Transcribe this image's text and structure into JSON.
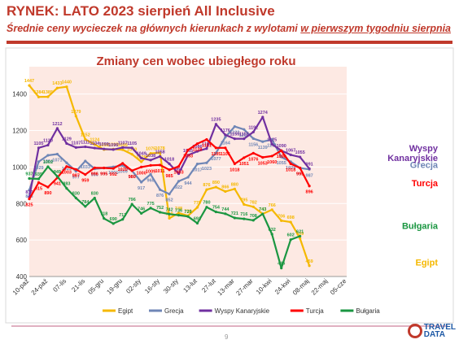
{
  "header": {
    "title": "RYNEK: LATO 2023 sierpień All Inclusive",
    "subtitle_prefix": "Średnie ceny wycieczek na głównych kierunkach z wylotami ",
    "subtitle_underlined": "w pierwszym tygodniu sierpnia"
  },
  "footer": {
    "page": "9",
    "logo_text_1": "TRAVEL",
    "logo_text_2": "DATA"
  },
  "colors": {
    "title": "#c0392b",
    "plot_bg": "#fde9e3",
    "frame": "#d9d9d9"
  },
  "chart_data": {
    "type": "line",
    "title": "Zmiany cen wobec ubiegłego roku",
    "ylim": [
      400,
      1550
    ],
    "yticks": [
      400,
      600,
      800,
      1000,
      1200,
      1400
    ],
    "grid": true,
    "legend_position": "bottom",
    "categories": [
      "10-paź",
      "17-paź",
      "24-paź",
      "31-paź",
      "07-lis",
      "14-lis",
      "21-lis",
      "28-lis",
      "05-gru",
      "12-gru",
      "19-gru",
      "26-gru",
      "02-sty",
      "09-sty",
      "16-sty",
      "23-sty",
      "30-sty",
      "06-lut",
      "13-lut",
      "20-lut",
      "27-lut",
      "06-mar",
      "13-mar",
      "20-mar",
      "27-mar",
      "03-kwi",
      "10-kwi",
      "17-kwi",
      "24-kwi",
      "01-maj",
      "08-maj",
      "15-maj",
      "22-maj",
      "29-maj",
      "05-cze"
    ],
    "xtick_labels": [
      "10-paź",
      "24-paź",
      "07-lis",
      "21-lis",
      "05-gru",
      "19-gru",
      "02-sty",
      "16-sty",
      "30-sty",
      "13-lut",
      "27-lut",
      "13-mar",
      "27-mar",
      "10-kwi",
      "24-kwi",
      "08-maj",
      "22-maj",
      "05-cze"
    ],
    "series": [
      {
        "name": "Egipt",
        "color": "#f5b800",
        "values": [
          1447,
          1384,
          1385,
          1433,
          1440,
          1279,
          1152,
          1124,
          1096,
          1098,
          1095,
          1070,
          1029,
          1075,
          1078,
          719,
          748,
          733,
          779,
          876,
          890,
          866,
          880,
          795,
          782,
          743,
          766,
          706,
          698,
          609,
          459,
          null,
          null,
          null,
          null
        ],
        "labels": [
          "1447",
          "1384",
          "1385",
          "1433",
          "1440",
          "1279",
          "1152",
          "1124",
          "1096",
          "1098",
          "1095",
          "1070",
          "1029",
          "1075",
          "1078",
          "719",
          "748",
          "733",
          "779",
          "876",
          "890",
          "866",
          "880",
          "795",
          "782",
          "743",
          "766",
          "706",
          "698",
          "609",
          "459",
          "",
          "",
          "",
          ""
        ]
      },
      {
        "name": "Grecja",
        "color": "#6f86b6",
        "values": [
          873,
          1029,
          1064,
          1071,
          1023,
          977,
          1033,
          990,
          995,
          1001,
          1009,
          980,
          917,
          960,
          876,
          852,
          922,
          944,
          1017,
          1023,
          1077,
          1164,
          1222,
          1206,
          1156,
          1139,
          1151,
          1055,
          1029,
          995,
          987,
          null,
          null,
          null,
          null
        ],
        "labels": [
          "873",
          "1029",
          "1064",
          "1071",
          "1023",
          "977",
          "1033",
          "990",
          "995",
          "1001",
          "1009",
          "980",
          "917",
          "960",
          "876",
          "852",
          "922",
          "944",
          "1017",
          "1023",
          "1077",
          "1164",
          "1222",
          "1206",
          "1156",
          "1139",
          "1151",
          "1055",
          "1029",
          "995",
          "987",
          "",
          "",
          "",
          ""
        ]
      },
      {
        "name": "Wyspy Kanaryjskie",
        "color": "#7030a0",
        "values": [
          836,
          1105,
          1120,
          1212,
          1129,
          1107,
          1111,
          1104,
          1099,
          1096,
          1107,
          1105,
          1049,
          1038,
          1058,
          1018,
          964,
          1065,
          1086,
          1101,
          1235,
          1176,
          1155,
          1155,
          1192,
          1274,
          1125,
          1090,
          1067,
          1055,
          991,
          null,
          null,
          null,
          null
        ],
        "labels": [
          "836",
          "1105",
          "1120",
          "1212",
          "1129",
          "1107",
          "1111",
          "1104",
          "1099",
          "1096",
          "1107",
          "1105",
          "1049",
          "1038",
          "1058",
          "1018",
          "964",
          "1065",
          "1086",
          "1101",
          "1235",
          "1176",
          "1155",
          "1155",
          "1192",
          "1274",
          "1125",
          "1090",
          "1067",
          "1055",
          "991",
          "",
          "",
          "",
          ""
        ]
      },
      {
        "name": "Turcja",
        "color": "#ff0000",
        "values": [
          825,
          915,
          890,
          941,
          1003,
          987,
          959,
          996,
          995,
          992,
          1020,
          980,
          1000,
          1009,
          1011,
          985,
          1003,
          1093,
          1128,
          1151,
          1105,
          1105,
          1018,
          1051,
          1076,
          1053,
          1060,
          1090,
          1018,
          995,
          896,
          null,
          null,
          null,
          null
        ],
        "labels": [
          "825",
          "915",
          "890",
          "941",
          "1003",
          "987",
          "959",
          "996",
          "995",
          "992",
          "1020",
          "980",
          "1000",
          "1009",
          "1011",
          "985",
          "1003",
          "1093",
          "1128",
          "1151",
          "1105",
          "1105",
          "1018",
          "1051",
          "1076",
          "1053",
          "1060",
          "1090",
          "1018",
          "995",
          "896",
          "",
          "",
          "",
          ""
        ]
      },
      {
        "name": "Bułgaria",
        "color": "#1a9641",
        "values": [
          937,
          935,
          1002,
          949,
          883,
          830,
          784,
          830,
          718,
          690,
          713,
          796,
          746,
          775,
          752,
          742,
          736,
          729,
          692,
          780,
          754,
          744,
          721,
          716,
          708,
          743,
          632,
          446,
          602,
          621,
          null,
          null,
          null,
          null,
          null
        ],
        "labels": [
          "937",
          "935",
          "1002",
          "949",
          "883",
          "830",
          "784",
          "830",
          "718",
          "690",
          "713",
          "796",
          "746",
          "775",
          "752",
          "742",
          "736",
          "729",
          "692",
          "780",
          "754",
          "744",
          "721",
          "716",
          "708",
          "743",
          "632",
          "446",
          "602",
          "621",
          "",
          "",
          "",
          "",
          ""
        ]
      }
    ]
  }
}
